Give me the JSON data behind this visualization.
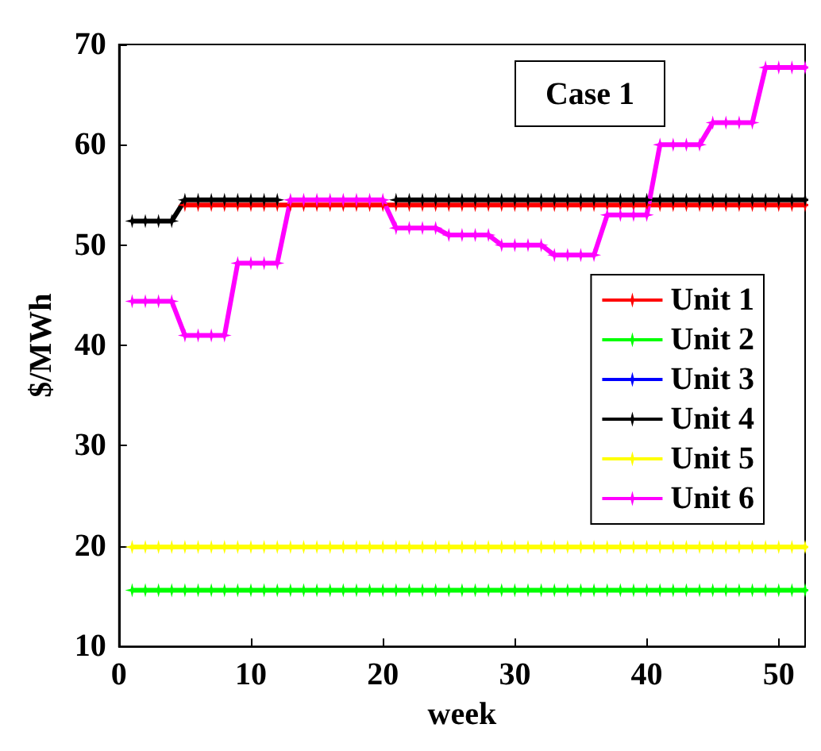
{
  "chart_data": {
    "type": "line",
    "xlabel": "week",
    "ylabel": "$/MWh",
    "annotations": [
      "Case 1"
    ],
    "x": [
      1,
      2,
      3,
      4,
      5,
      6,
      7,
      8,
      9,
      10,
      11,
      12,
      13,
      14,
      15,
      16,
      17,
      18,
      19,
      20,
      21,
      22,
      23,
      24,
      25,
      26,
      27,
      28,
      29,
      30,
      31,
      32,
      33,
      34,
      35,
      36,
      37,
      38,
      39,
      40,
      41,
      42,
      43,
      44,
      45,
      46,
      47,
      48,
      49,
      50,
      51,
      52
    ],
    "series": [
      {
        "name": "Unit 1",
        "color": "#ff0000",
        "values": [
          null,
          null,
          null,
          null,
          54,
          54,
          54,
          54,
          54,
          54,
          54,
          54,
          54,
          54,
          54,
          54,
          54,
          54,
          54,
          54,
          54,
          54,
          54,
          54,
          54,
          54,
          54,
          54,
          54,
          54,
          54,
          54,
          54,
          54,
          54,
          54,
          54,
          54,
          54,
          54,
          54,
          54,
          54,
          54,
          54,
          54,
          54,
          54,
          54,
          54,
          54,
          54
        ]
      },
      {
        "name": "Unit 2",
        "color": "#00ff00",
        "values": [
          15.6,
          15.6,
          15.6,
          15.6,
          15.6,
          15.6,
          15.6,
          15.6,
          15.6,
          15.6,
          15.6,
          15.6,
          15.6,
          15.6,
          15.6,
          15.6,
          15.6,
          15.6,
          15.6,
          15.6,
          15.6,
          15.6,
          15.6,
          15.6,
          15.6,
          15.6,
          15.6,
          15.6,
          15.6,
          15.6,
          15.6,
          15.6,
          15.6,
          15.6,
          15.6,
          15.6,
          15.6,
          15.6,
          15.6,
          15.6,
          15.6,
          15.6,
          15.6,
          15.6,
          15.6,
          15.6,
          15.6,
          15.6,
          15.6,
          15.6,
          15.6,
          15.6
        ]
      },
      {
        "name": "Unit 3",
        "color": "#0000ff",
        "values": [
          null,
          null,
          null,
          null,
          null,
          null,
          null,
          null,
          null,
          null,
          null,
          null,
          null,
          null,
          null,
          null,
          null,
          null,
          null,
          null,
          null,
          null,
          null,
          null,
          null,
          null,
          null,
          null,
          null,
          null,
          null,
          null,
          null,
          null,
          null,
          null,
          null,
          null,
          null,
          null,
          null,
          null,
          null,
          null,
          null,
          null,
          null,
          null,
          null,
          null,
          null,
          null
        ]
      },
      {
        "name": "Unit 4",
        "color": "#000000",
        "values": [
          52.4,
          52.4,
          52.4,
          52.4,
          54.5,
          54.5,
          54.5,
          54.5,
          54.5,
          54.5,
          54.5,
          54.5,
          null,
          null,
          null,
          null,
          null,
          null,
          null,
          null,
          54.5,
          54.5,
          54.5,
          54.5,
          54.5,
          54.5,
          54.5,
          54.5,
          54.5,
          54.5,
          54.5,
          54.5,
          54.5,
          54.5,
          54.5,
          54.5,
          54.5,
          54.5,
          54.5,
          54.5,
          54.5,
          54.5,
          54.5,
          54.5,
          54.5,
          54.5,
          54.5,
          54.5,
          54.5,
          54.5,
          54.5,
          54.5
        ]
      },
      {
        "name": "Unit 5",
        "color": "#ffff00",
        "values": [
          19.9,
          19.9,
          19.9,
          19.9,
          19.9,
          19.9,
          19.9,
          19.9,
          19.9,
          19.9,
          19.9,
          19.9,
          19.9,
          19.9,
          19.9,
          19.9,
          19.9,
          19.9,
          19.9,
          19.9,
          19.9,
          19.9,
          19.9,
          19.9,
          19.9,
          19.9,
          19.9,
          19.9,
          19.9,
          19.9,
          19.9,
          19.9,
          19.9,
          19.9,
          19.9,
          19.9,
          19.9,
          19.9,
          19.9,
          19.9,
          19.9,
          19.9,
          19.9,
          19.9,
          19.9,
          19.9,
          19.9,
          19.9,
          19.9,
          19.9,
          19.9,
          19.9
        ]
      },
      {
        "name": "Unit 6",
        "color": "#ff00ff",
        "values": [
          44.4,
          44.4,
          44.4,
          44.4,
          41,
          41,
          41,
          41,
          48.2,
          48.2,
          48.2,
          48.2,
          54.5,
          54.5,
          54.5,
          54.5,
          54.5,
          54.5,
          54.5,
          54.5,
          51.7,
          51.7,
          51.7,
          51.7,
          51,
          51,
          51,
          51,
          50,
          50,
          50,
          50,
          49,
          49,
          49,
          49,
          53,
          53,
          53,
          53,
          60,
          60,
          60,
          60,
          62.2,
          62.2,
          62.2,
          62.2,
          67.7,
          67.7,
          67.7,
          67.7
        ]
      }
    ],
    "xlim": [
      0,
      52
    ],
    "xticks": [
      0,
      10,
      20,
      30,
      40,
      50
    ],
    "ylim": [
      10,
      70
    ],
    "yticks": [
      10,
      20,
      30,
      40,
      50,
      60,
      70
    ],
    "grid": false,
    "legend": "right",
    "marker": "star",
    "line_style": "solid"
  }
}
